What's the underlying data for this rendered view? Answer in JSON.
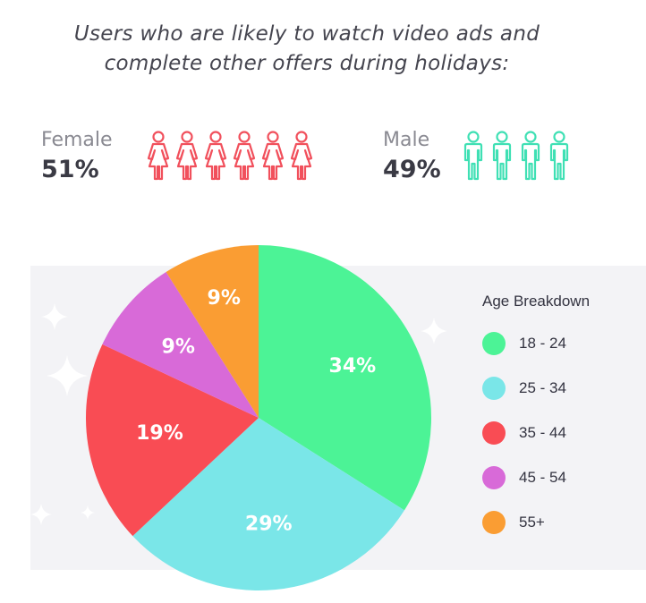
{
  "title": {
    "line1": "Users who are likely to watch video ads and",
    "line2": "complete other offers during holidays:"
  },
  "gender": {
    "female": {
      "label": "Female",
      "value": "51%",
      "icon_count": 6,
      "icon": "female-person-icon",
      "color": "#f1505c"
    },
    "male": {
      "label": "Male",
      "value": "49%",
      "icon_count": 4,
      "icon": "male-person-icon",
      "color": "#3fe0b4"
    }
  },
  "chart_data": {
    "type": "pie",
    "title": "Age Breakdown",
    "categories": [
      "18 - 24",
      "25 - 34",
      "35 - 44",
      "45 - 54",
      "55+"
    ],
    "values": [
      34,
      29,
      19,
      9,
      9
    ],
    "labels": [
      "34%",
      "29%",
      "19%",
      "9%",
      "9%"
    ],
    "colors": [
      "#4cf396",
      "#7ae6e8",
      "#f94c54",
      "#d86ad8",
      "#fa9d33"
    ],
    "legend_placement": "right"
  }
}
